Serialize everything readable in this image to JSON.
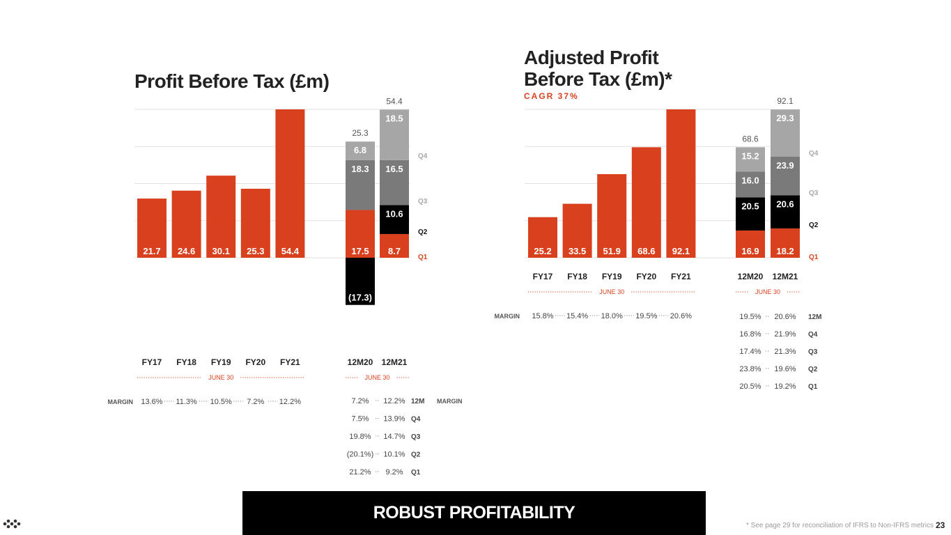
{
  "colors": {
    "accent": "#d9411e",
    "q1": "#d9411e",
    "q2": "#000000",
    "q3": "#7a7a7a",
    "q4": "#a6a6a6",
    "grid": "#e2e2e2",
    "text": "#333333",
    "muted": "#9b9b9b"
  },
  "footer": {
    "banner": "ROBUST PROFITABILITY",
    "footnote": "* See page 29 for reconciliation of IFRS to Non-IFRS metrics",
    "page_number": "23"
  },
  "logo_icon": "dots-logo-icon",
  "chart_data": [
    {
      "type": "bar",
      "title": "Profit Before Tax (£m)",
      "subtitle": "",
      "annual": {
        "categories": [
          "FY17",
          "FY18",
          "FY19",
          "FY20",
          "FY21"
        ],
        "values": [
          21.7,
          24.6,
          30.1,
          25.3,
          54.4
        ],
        "labels": [
          "21.7",
          "24.6",
          "30.1",
          "25.3",
          "54.4"
        ],
        "group_label": "JUNE 30"
      },
      "stacked": {
        "categories": [
          "12M20",
          "12M21"
        ],
        "group_label": "JUNE 30",
        "totals": [
          "25.3",
          "54.4"
        ],
        "series": [
          {
            "name": "Q1",
            "values": [
              17.5,
              8.7
            ],
            "labels": [
              "17.5",
              "8.7"
            ]
          },
          {
            "name": "Q2",
            "values": [
              -17.3,
              10.6
            ],
            "labels": [
              "(17.3)",
              "10.6"
            ]
          },
          {
            "name": "Q3",
            "values": [
              18.3,
              16.5
            ],
            "labels": [
              "18.3",
              "16.5"
            ]
          },
          {
            "name": "Q4",
            "values": [
              6.8,
              18.5
            ],
            "labels": [
              "6.8",
              "18.5"
            ]
          }
        ],
        "side_labels": [
          "Q4",
          "Q3",
          "Q2",
          "Q1"
        ]
      },
      "ylim": [
        -25,
        54.4
      ],
      "margin": {
        "label": "MARGIN",
        "annual": [
          "13.6%",
          "11.3%",
          "10.5%",
          "7.2%",
          "12.2%"
        ],
        "stacked_rows": [
          {
            "label": "12M",
            "values": [
              "7.2%",
              "12.2%"
            ]
          },
          {
            "label": "Q4",
            "values": [
              "7.5%",
              "13.9%"
            ]
          },
          {
            "label": "Q3",
            "values": [
              "19.8%",
              "14.7%"
            ]
          },
          {
            "label": "Q2",
            "values": [
              "(20.1%)",
              "10.1%"
            ]
          },
          {
            "label": "Q1",
            "values": [
              "21.2%",
              "9.2%"
            ]
          }
        ],
        "stacked_label": "MARGIN"
      }
    },
    {
      "type": "bar",
      "title": "Adjusted Profit Before Tax (£m)*",
      "subtitle": "CAGR 37%",
      "annual": {
        "categories": [
          "FY17",
          "FY18",
          "FY19",
          "FY20",
          "FY21"
        ],
        "values": [
          25.2,
          33.5,
          51.9,
          68.6,
          92.1
        ],
        "labels": [
          "25.2",
          "33.5",
          "51.9",
          "68.6",
          "92.1"
        ],
        "group_label": "JUNE 30"
      },
      "stacked": {
        "categories": [
          "12M20",
          "12M21"
        ],
        "group_label": "JUNE 30",
        "totals": [
          "68.6",
          "92.1"
        ],
        "series": [
          {
            "name": "Q1",
            "values": [
              16.9,
              18.2
            ],
            "labels": [
              "16.9",
              "18.2"
            ]
          },
          {
            "name": "Q2",
            "values": [
              20.5,
              20.6
            ],
            "labels": [
              "20.5",
              "20.6"
            ]
          },
          {
            "name": "Q3",
            "values": [
              16.0,
              23.9
            ],
            "labels": [
              "16.0",
              "23.9"
            ]
          },
          {
            "name": "Q4",
            "values": [
              15.2,
              29.3
            ],
            "labels": [
              "15.2",
              "29.3"
            ]
          }
        ],
        "side_labels": [
          "Q4",
          "Q3",
          "Q2",
          "Q1"
        ]
      },
      "ylim": [
        0,
        92.1
      ],
      "margin": {
        "label": "MARGIN",
        "annual": [
          "15.8%",
          "15.4%",
          "18.0%",
          "19.5%",
          "20.6%"
        ],
        "stacked_rows": [
          {
            "label": "12M",
            "values": [
              "19.5%",
              "20.6%"
            ]
          },
          {
            "label": "Q4",
            "values": [
              "16.8%",
              "21.9%"
            ]
          },
          {
            "label": "Q3",
            "values": [
              "17.4%",
              "21.3%"
            ]
          },
          {
            "label": "Q2",
            "values": [
              "23.8%",
              "19.6%"
            ]
          },
          {
            "label": "Q1",
            "values": [
              "20.5%",
              "19.2%"
            ]
          }
        ],
        "stacked_label": ""
      }
    }
  ]
}
